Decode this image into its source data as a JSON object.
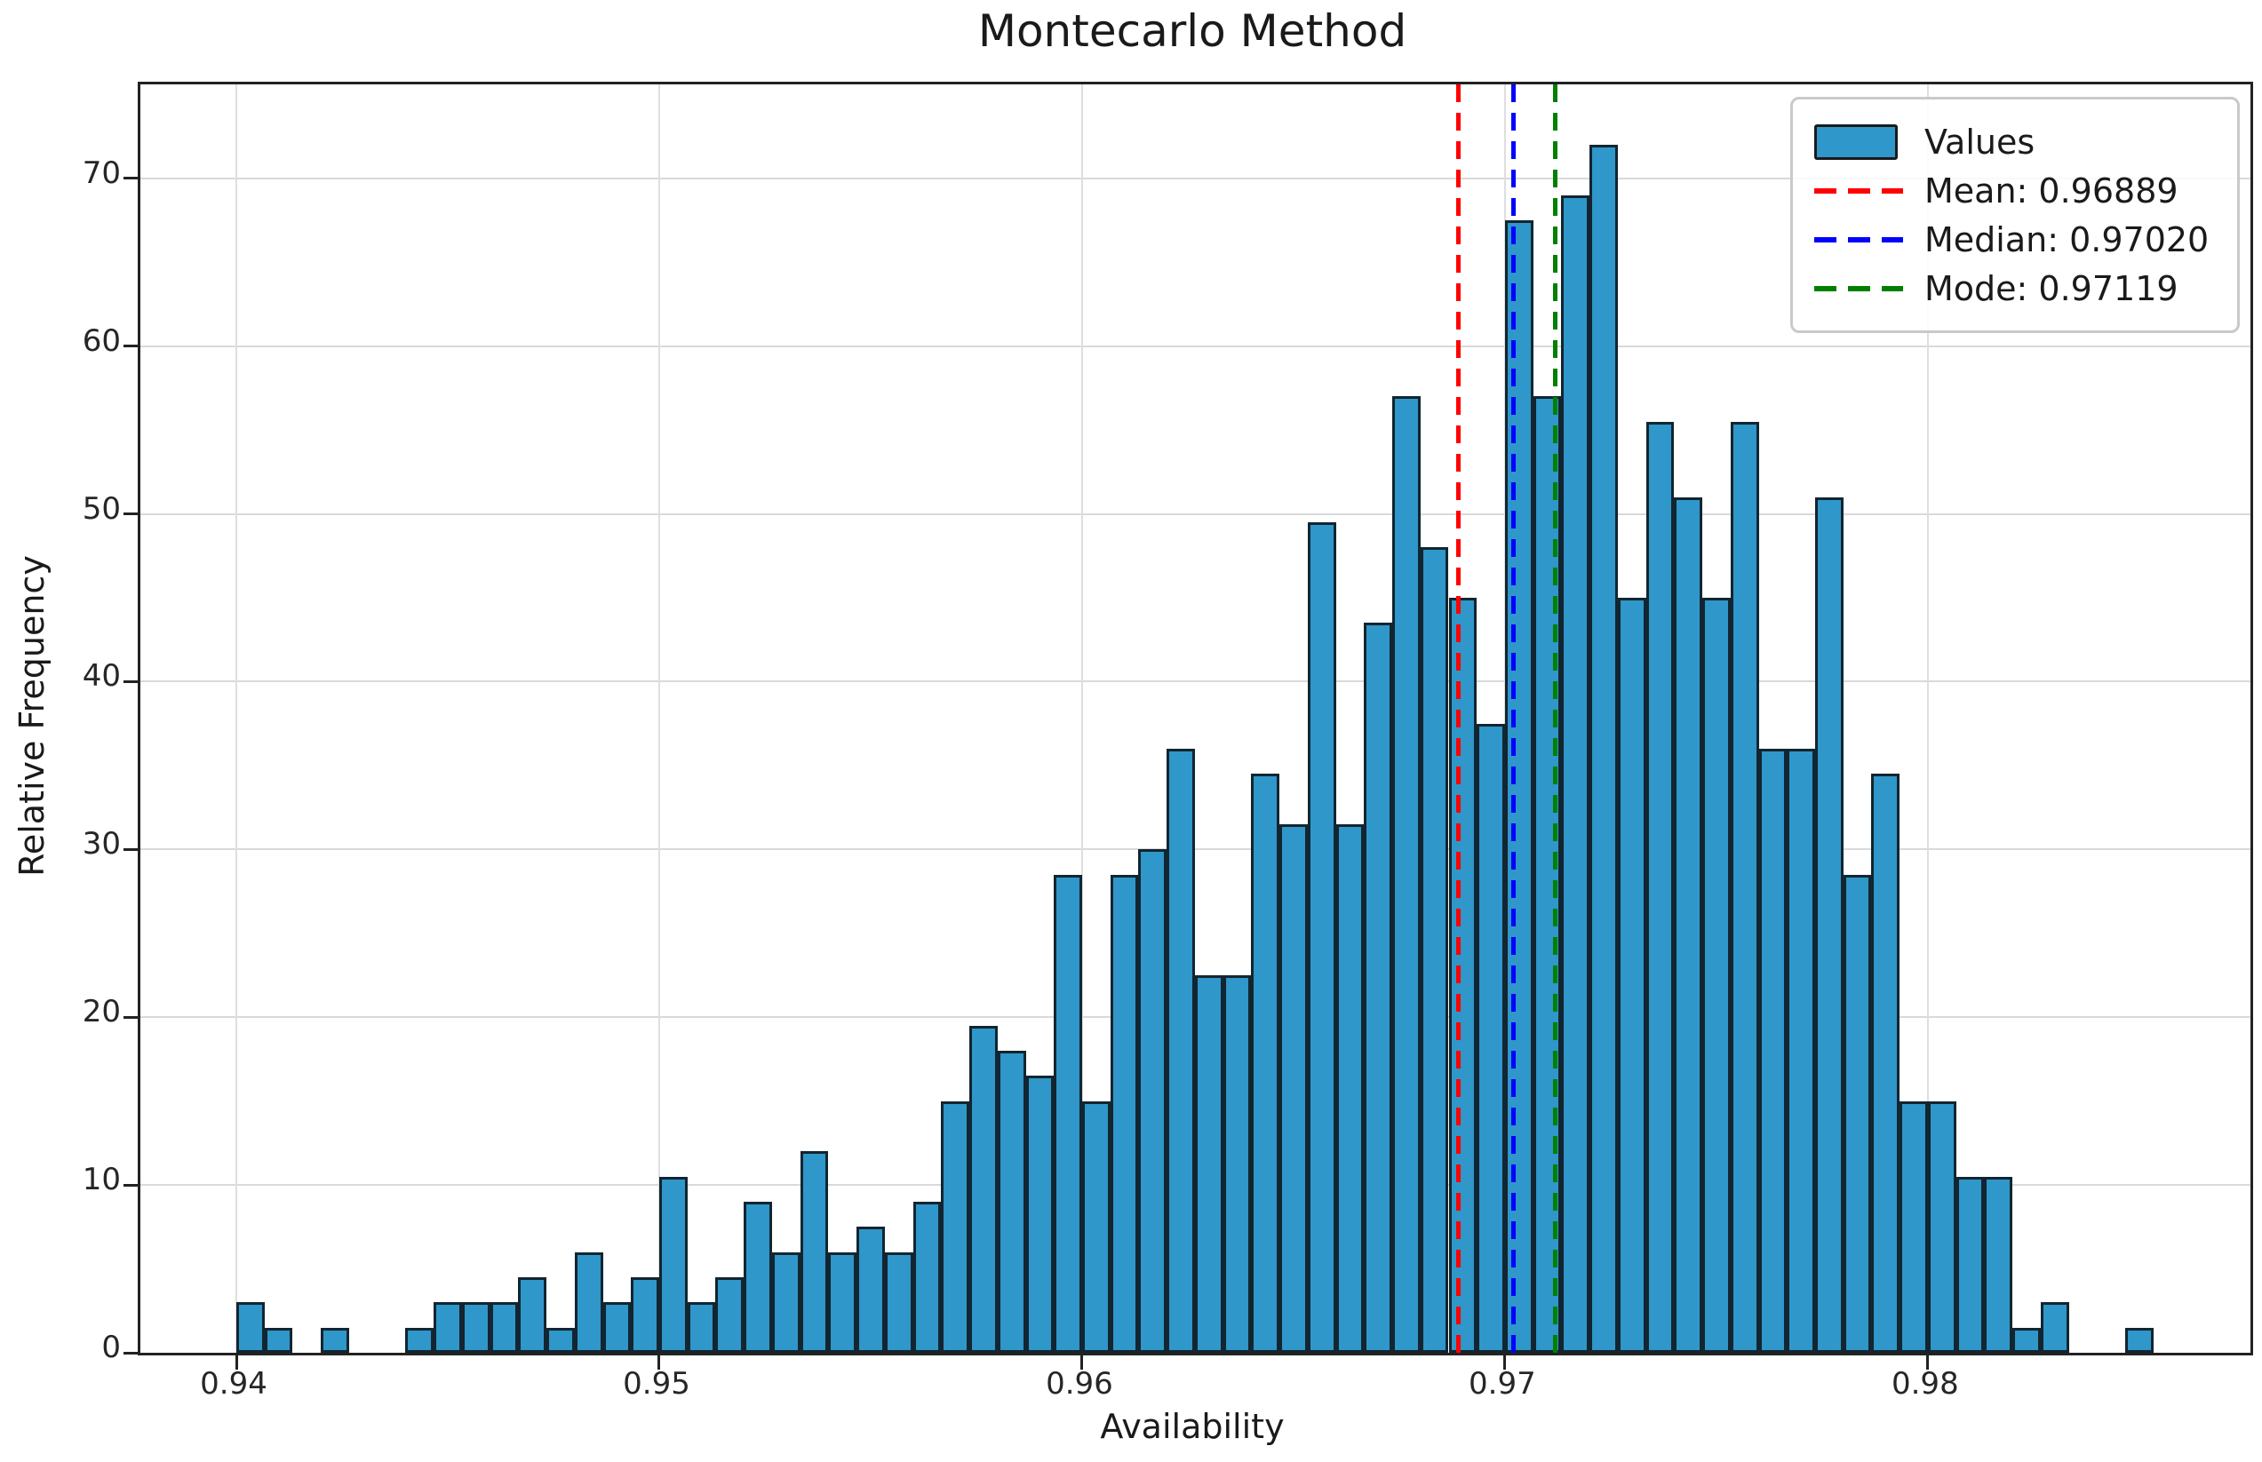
{
  "chart_data": {
    "type": "bar",
    "subtype": "histogram",
    "title": "Montecarlo Method",
    "xlabel": "Availability",
    "ylabel": "Relative Frequency",
    "x_ticks": [
      0.94,
      0.95,
      0.96,
      0.97,
      0.98
    ],
    "x_tick_labels": [
      "0.94",
      "0.95",
      "0.96",
      "0.97",
      "0.98"
    ],
    "y_ticks": [
      0,
      10,
      20,
      30,
      40,
      50,
      60,
      70
    ],
    "xlim": [
      0.93773,
      0.98763
    ],
    "ylim": [
      0,
      75.6
    ],
    "grid": true,
    "legend_position": "upper right",
    "bins": {
      "start": 0.94,
      "width": 0.0006667,
      "values": [
        3,
        1.5,
        0,
        1.5,
        0,
        0,
        1.5,
        3,
        3,
        3,
        4.5,
        1.5,
        6,
        3,
        4.5,
        10.5,
        3,
        4.5,
        9,
        6,
        12,
        6,
        7.5,
        6,
        9,
        15,
        19.5,
        18,
        16.5,
        28.5,
        15,
        28.5,
        30,
        36,
        22.5,
        22.5,
        34.5,
        31.5,
        49.5,
        31.5,
        43.5,
        57,
        48,
        45,
        37.5,
        67.5,
        57,
        69,
        72,
        45,
        55.5,
        51,
        45,
        55.5,
        36,
        36,
        51,
        28.5,
        34.5,
        15,
        15,
        10.5,
        10.5,
        1.5,
        3,
        0,
        0,
        1.5
      ]
    },
    "stat_lines": [
      {
        "name": "mean",
        "label": "Mean: 0.96889",
        "value": 0.96889,
        "color": "#ff0000"
      },
      {
        "name": "median",
        "label": "Median: 0.97020",
        "value": 0.9702,
        "color": "#0000ff"
      },
      {
        "name": "mode",
        "label": "Mode: 0.97119",
        "value": 0.97119,
        "color": "#008000"
      }
    ],
    "legend": {
      "entries": [
        {
          "kind": "patch",
          "label": "Values",
          "color": "#2f97c9"
        },
        {
          "kind": "dash",
          "label": "Mean: 0.96889",
          "color": "#ff0000"
        },
        {
          "kind": "dash",
          "label": "Median: 0.97020",
          "color": "#0000ff"
        },
        {
          "kind": "dash",
          "label": "Mode: 0.97119",
          "color": "#008000"
        }
      ]
    },
    "colors": {
      "bar_fill": "#2f97c9",
      "bar_edge": "#122530",
      "grid": "#d9d9d9",
      "axis": "#222222",
      "text": "#1a1a1a",
      "background": "#ffffff"
    }
  }
}
